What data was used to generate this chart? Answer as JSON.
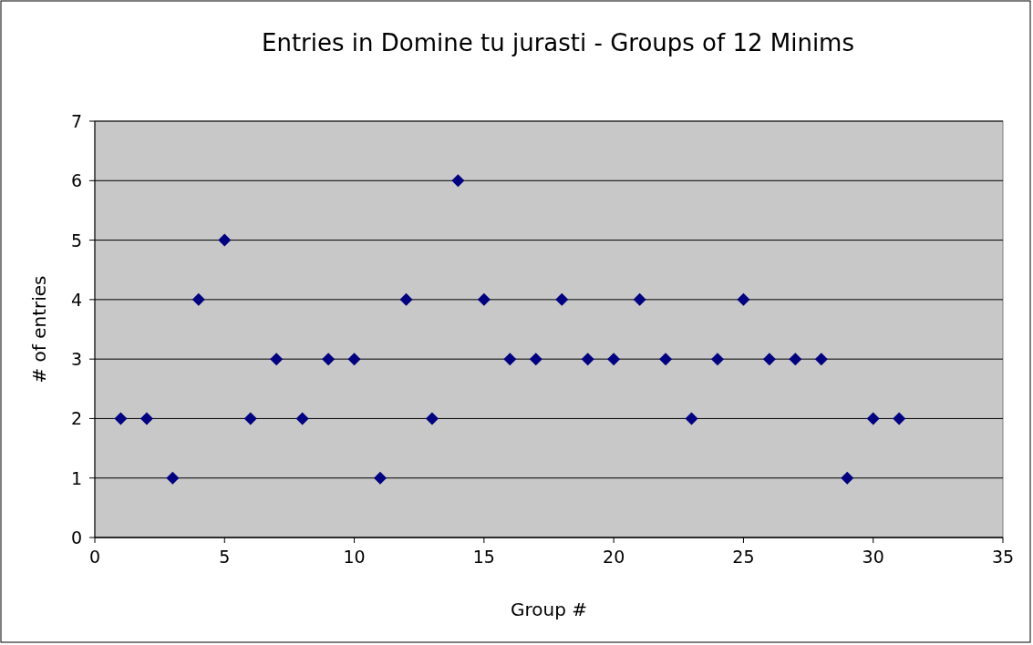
{
  "chart_data": {
    "type": "scatter",
    "title": "Entries in Domine tu jurasti - Groups of 12 Minims",
    "xlabel": "Group #",
    "ylabel": "# of entries",
    "x": [
      1,
      2,
      3,
      4,
      5,
      6,
      7,
      8,
      9,
      10,
      11,
      12,
      13,
      14,
      15,
      16,
      17,
      18,
      19,
      20,
      21,
      22,
      23,
      24,
      25,
      26,
      27,
      28,
      29,
      30,
      31
    ],
    "series": [
      {
        "color": "#000080",
        "values": [
          2,
          2,
          1,
          4,
          5,
          2,
          3,
          2,
          3,
          3,
          1,
          4,
          2,
          6,
          4,
          3,
          3,
          4,
          3,
          3,
          4,
          3,
          2,
          3,
          4,
          3,
          3,
          3,
          1,
          2,
          2
        ]
      }
    ],
    "xlim": [
      0,
      35
    ],
    "xticks": [
      0,
      5,
      10,
      15,
      20,
      25,
      30,
      35
    ],
    "ylim": [
      0,
      7
    ],
    "yticks": [
      0,
      1,
      2,
      3,
      4,
      5,
      6,
      7
    ],
    "grid": "y",
    "marker": "diamond"
  }
}
